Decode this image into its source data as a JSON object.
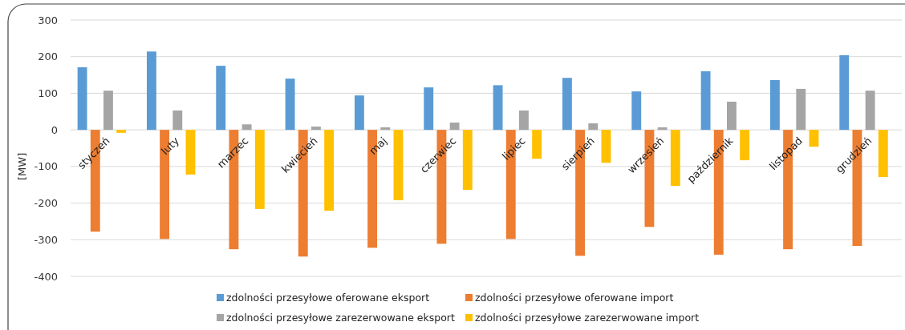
{
  "chart_data": {
    "type": "bar",
    "ylabel": "[MW]",
    "categories": [
      "styczeń",
      "luty",
      "marzec",
      "kwiecień",
      "maj",
      "czerwiec",
      "lipiec",
      "sierpień",
      "wrzesień",
      "październik",
      "listopad",
      "grudzień"
    ],
    "series": [
      {
        "name": "zdolności przesyłowe oferowane eksport",
        "color": "#5b9bd5",
        "values": [
          171,
          214,
          175,
          140,
          94,
          116,
          122,
          142,
          105,
          160,
          136,
          204
        ]
      },
      {
        "name": "zdolności przesyłowe oferowane import",
        "color": "#ed7d31",
        "values": [
          -278,
          -298,
          -326,
          -346,
          -322,
          -311,
          -298,
          -344,
          -265,
          -341,
          -326,
          -317
        ]
      },
      {
        "name": "zdolności przesyłowe zarezerwowane eksport",
        "color": "#a5a5a5",
        "values": [
          107,
          53,
          15,
          9,
          7,
          20,
          53,
          18,
          7,
          77,
          112,
          107
        ]
      },
      {
        "name": "zdolności przesyłowe zarezerwowane import",
        "color": "#ffc000",
        "values": [
          -8,
          -122,
          -216,
          -221,
          -192,
          -164,
          -79,
          -90,
          -153,
          -83,
          -46,
          -129
        ]
      }
    ],
    "ylim": [
      -400,
      300
    ],
    "yticks": [
      -400,
      -300,
      -200,
      -100,
      0,
      100,
      200,
      300
    ],
    "grid": "y",
    "legend": "bottom"
  }
}
